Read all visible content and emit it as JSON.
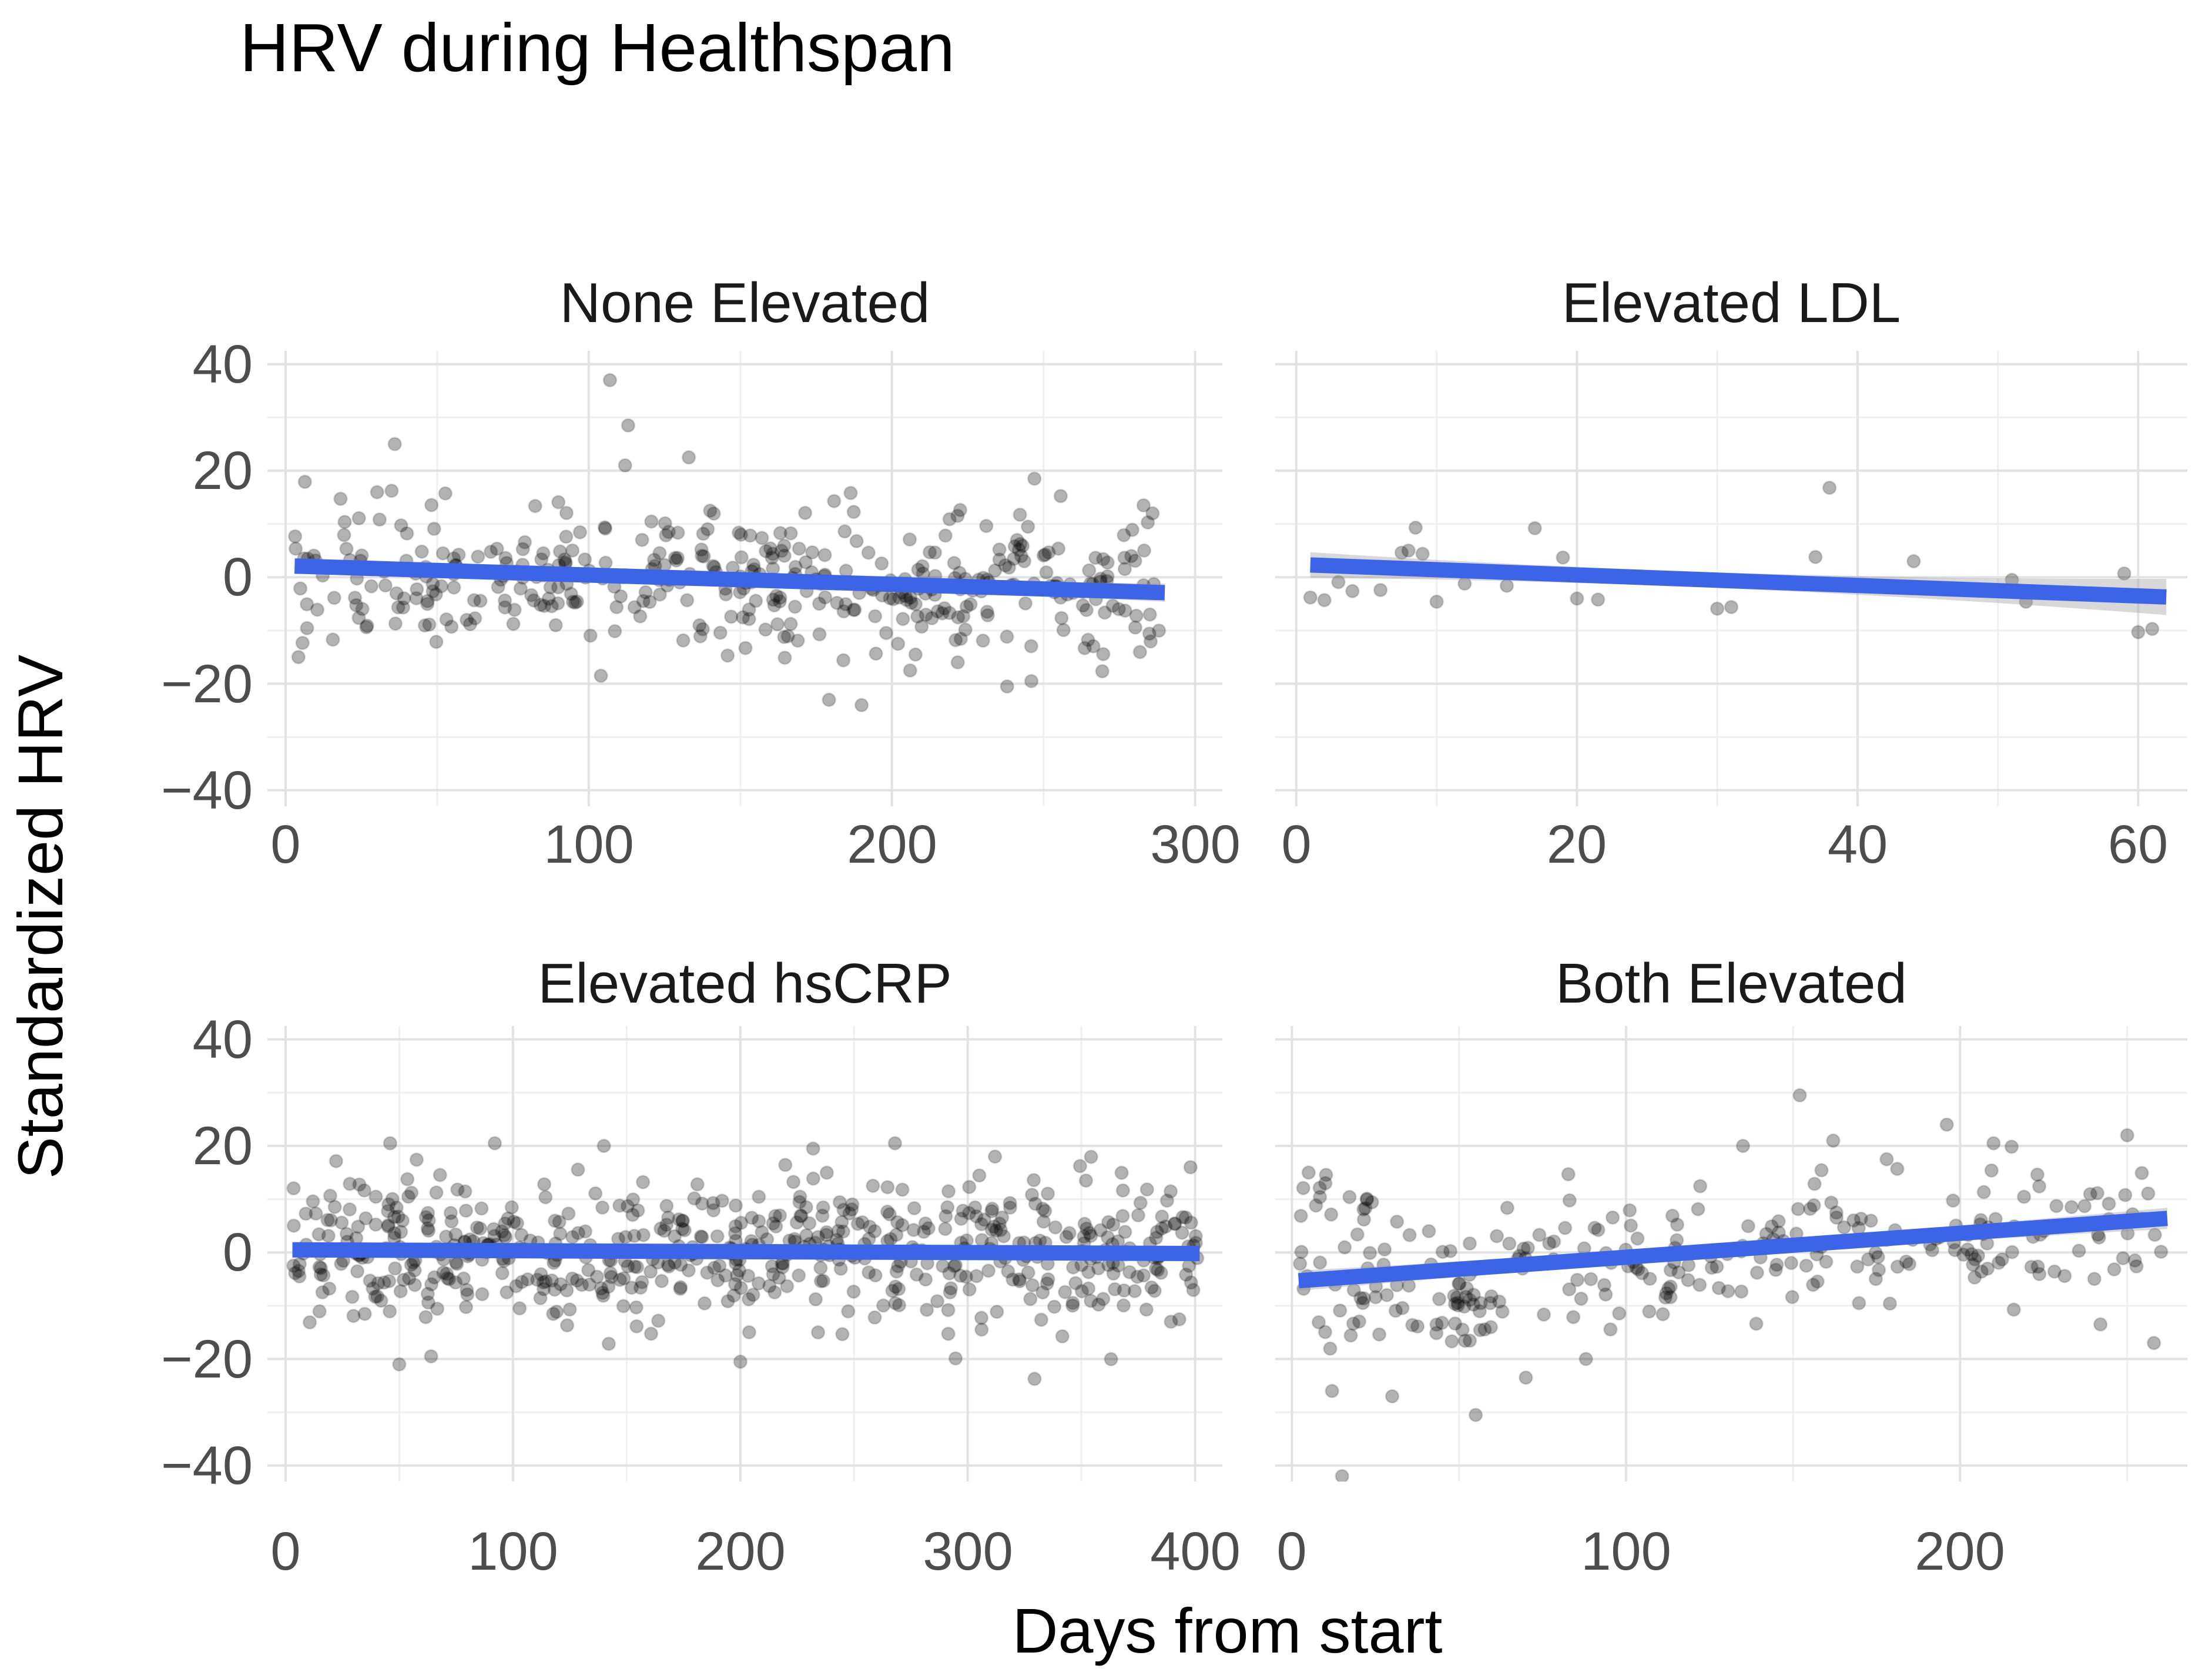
{
  "title": "HRV during Healthspan",
  "x_axis_label": "Days from start",
  "y_axis_label": "Standardized HRV",
  "colors": {
    "background": "#ffffff",
    "trend_line": "#3b64e9",
    "confidence_band": "#999999",
    "point": "#000000",
    "grid_major": "#e2e2e2",
    "grid_minor": "#f0f0f0",
    "tick_text": "#4d4d4d",
    "title_text": "#000000",
    "facet_title_text": "#1a1a1a"
  },
  "y_scale": {
    "domain": [
      -43,
      42.5
    ],
    "major": [
      40,
      20,
      0,
      -20,
      -40
    ],
    "minor": [
      30,
      10,
      -10,
      -30
    ],
    "tick_labels": [
      "40",
      "20",
      "0",
      "−20",
      "−40"
    ]
  },
  "chart_data": {
    "type": "scatter",
    "title": "HRV during Healthspan",
    "xlabel": "Days from start",
    "ylabel": "Standardized HRV",
    "grid": true,
    "legend": "none",
    "ylim": [
      -43,
      42.5
    ],
    "facets": [
      {
        "label": "None Elevated",
        "x_domain": [
          -6,
          309
        ],
        "x_major": [
          0,
          100,
          200,
          300
        ],
        "x_minor": [
          50,
          150,
          250
        ],
        "x_tick_labels": [
          "0",
          "100",
          "200",
          "300"
        ],
        "trend": {
          "x0": 3,
          "y0": 2.1,
          "x1": 290,
          "y1": -2.9
        },
        "band": {
          "start": 1.5,
          "mid": 0.9,
          "end": 1.7
        },
        "scatter": {
          "n": 420,
          "x_min": 3,
          "x_max": 290,
          "sd": 6.8,
          "seed": 7
        },
        "outliers": [
          [
            107,
            37
          ],
          [
            113,
            28.5
          ],
          [
            36,
            25
          ],
          [
            133,
            22.5
          ],
          [
            112,
            21
          ],
          [
            247,
            18.5
          ],
          [
            283,
            13.5
          ],
          [
            286,
            12
          ],
          [
            190,
            -24
          ],
          [
            238,
            -20.5
          ],
          [
            246,
            -19.5
          ],
          [
            206,
            -17.5
          ],
          [
            104,
            -18.5
          ]
        ]
      },
      {
        "label": "Elevated LDL",
        "x_domain": [
          -1.5,
          63.5
        ],
        "x_major": [
          0,
          20,
          40,
          60
        ],
        "x_minor": [
          10,
          30,
          50
        ],
        "x_tick_labels": [
          "0",
          "20",
          "40",
          "60"
        ],
        "trend": {
          "x0": 1,
          "y0": 2.3,
          "x1": 62,
          "y1": -3.7
        },
        "band": {
          "start": 2.4,
          "mid": 1.5,
          "end": 3.4
        },
        "points": [
          [
            1,
            -3.8
          ],
          [
            2,
            -4.3
          ],
          [
            3,
            -0.9
          ],
          [
            4,
            -2.6
          ],
          [
            6,
            -2.4
          ],
          [
            7.5,
            4.6
          ],
          [
            8,
            5.0
          ],
          [
            8.5,
            9.3
          ],
          [
            9,
            4.4
          ],
          [
            10,
            -4.6
          ],
          [
            12,
            -1.2
          ],
          [
            15,
            -1.6
          ],
          [
            17,
            9.2
          ],
          [
            19,
            3.7
          ],
          [
            20,
            -4.0
          ],
          [
            21.5,
            -4.2
          ],
          [
            30,
            -5.9
          ],
          [
            31,
            -5.6
          ],
          [
            37,
            3.8
          ],
          [
            38,
            16.8
          ],
          [
            44,
            3.0
          ],
          [
            51,
            -0.5
          ],
          [
            52,
            -4.6
          ],
          [
            59,
            0.7
          ],
          [
            60,
            -10.3
          ],
          [
            61,
            -9.7
          ]
        ]
      },
      {
        "label": "Elevated hsCRP",
        "x_domain": [
          -8,
          412
        ],
        "x_major": [
          0,
          100,
          200,
          300,
          400
        ],
        "x_minor": [
          50,
          150,
          250,
          350
        ],
        "x_tick_labels": [
          "0",
          "100",
          "200",
          "300",
          "400"
        ],
        "trend": {
          "x0": 3,
          "y0": 0.5,
          "x1": 402,
          "y1": -0.2
        },
        "band": {
          "start": 1.1,
          "mid": 0.8,
          "end": 1.2
        },
        "scatter": {
          "n": 610,
          "x_min": 3,
          "x_max": 402,
          "sd": 6.5,
          "seed": 13
        },
        "outliers": [
          [
            50,
            -21
          ],
          [
            64,
            -19.5
          ],
          [
            200,
            -20.5
          ],
          [
            46,
            20.5
          ],
          [
            92,
            20.5
          ],
          [
            140,
            20
          ],
          [
            232,
            19.5
          ],
          [
            268,
            20.5
          ],
          [
            312,
            18
          ],
          [
            398,
            16
          ],
          [
            352,
            13.5
          ]
        ]
      },
      {
        "label": "Both Elevated",
        "x_domain": [
          -5,
          268
        ],
        "x_major": [
          0,
          100,
          200
        ],
        "x_minor": [
          50,
          150,
          250
        ],
        "x_tick_labels": [
          "0",
          "100",
          "200"
        ],
        "trend": {
          "x0": 2,
          "y0": -5.3,
          "x1": 262,
          "y1": 6.4
        },
        "band": {
          "start": 1.9,
          "mid": 1.2,
          "end": 2.0
        },
        "scatter": {
          "n": 235,
          "x_min": 2,
          "x_max": 262,
          "sd": 6.2,
          "seed": 21
        },
        "clusters": [
          {
            "n": 30,
            "x": [
              18,
              65
            ],
            "y": [
              -17,
              -8
            ],
            "seed": 31
          },
          {
            "n": 12,
            "x": [
              2,
              26
            ],
            "y": [
              5,
              15
            ],
            "seed": 41
          }
        ],
        "outliers": [
          [
            15,
            -42
          ],
          [
            55,
            -30.5
          ],
          [
            30,
            -27
          ],
          [
            12,
            -26
          ],
          [
            70,
            -23.5
          ],
          [
            88,
            -20
          ],
          [
            152,
            29.5
          ],
          [
            196,
            24
          ],
          [
            162,
            21
          ],
          [
            135,
            20
          ],
          [
            210,
            20.5
          ],
          [
            250,
            22
          ],
          [
            258,
            -17
          ],
          [
            5,
            15
          ],
          [
            10,
            13
          ],
          [
            178,
            17.5
          ],
          [
            242,
            -13.5
          ]
        ]
      }
    ]
  }
}
